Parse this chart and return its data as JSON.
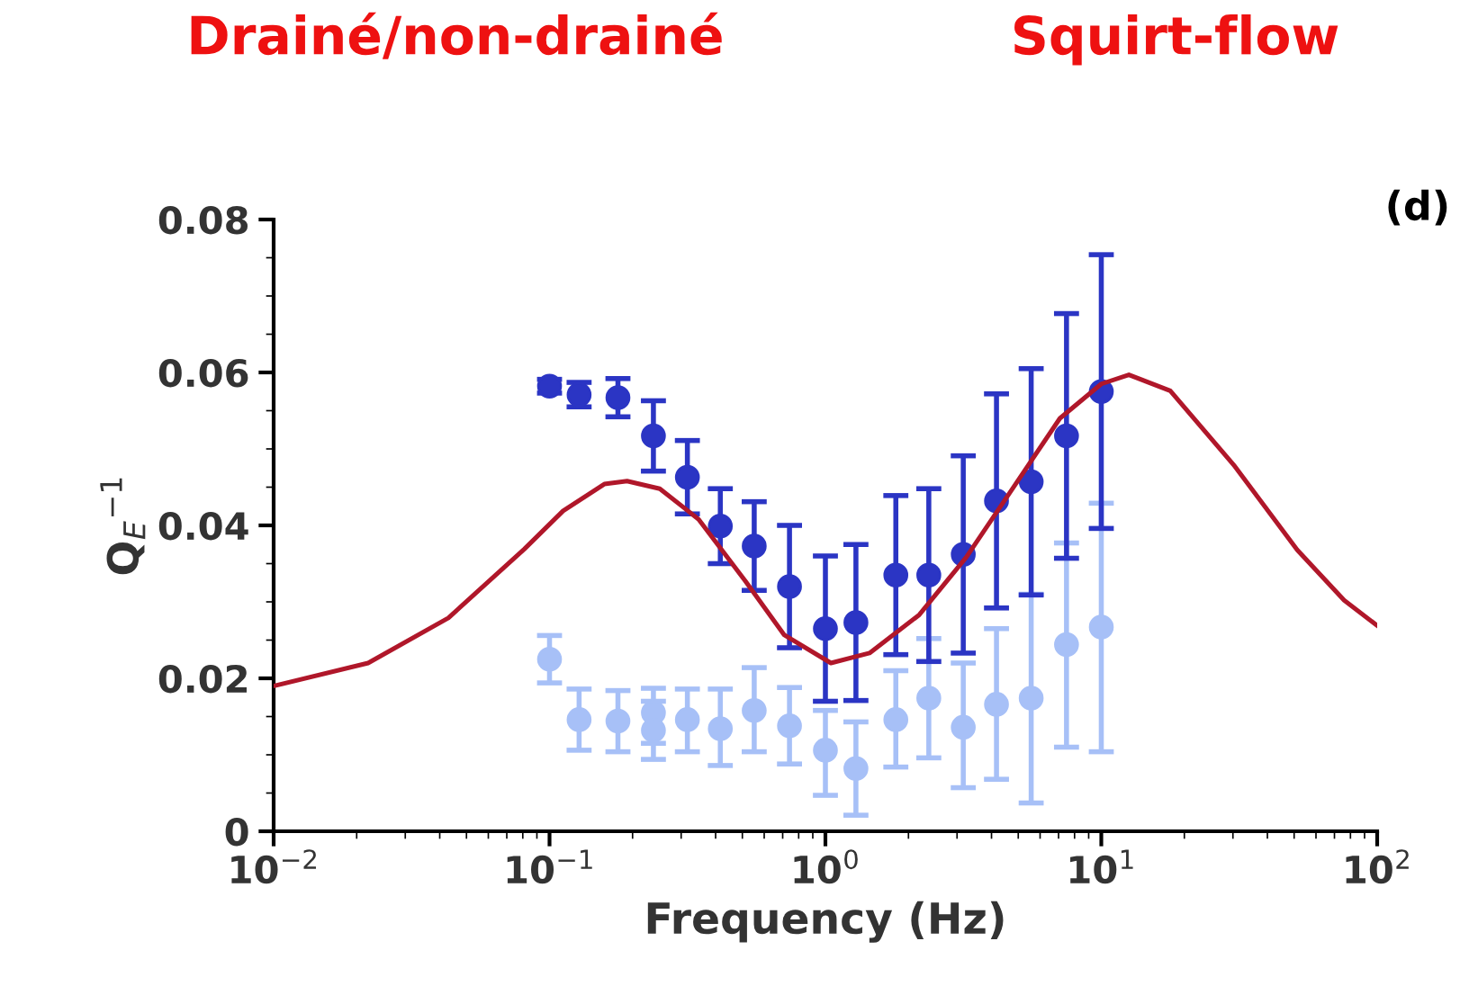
{
  "chart_data": {
    "type": "scatter",
    "xlabel": "Frequency (Hz)",
    "ylabel": "Q$_{E}$$^{−1}$",
    "annotations": [
      "Drainé/non-drainé",
      "Squirt-flow",
      "(d)"
    ],
    "log": "x",
    "xlim": [
      0.01,
      100
    ],
    "xticks": [
      {
        "value": 0.01,
        "label": "10$^{−2}$"
      },
      {
        "value": 0.1,
        "label": "10$^{−1}$"
      },
      {
        "value": 1,
        "label": "10$^{0}$"
      },
      {
        "value": 10,
        "label": "10$^{1}$"
      },
      {
        "value": 100,
        "label": "10$^{2}$"
      }
    ],
    "ylim": [
      0,
      0.08
    ],
    "yticks": [
      0,
      0.02,
      0.04,
      0.06,
      0.08
    ],
    "grid": false,
    "legend": false,
    "marker": "circle",
    "series": [
      {
        "type": "line",
        "color": "#b0172a",
        "marker": "none",
        "line_style": "solid",
        "x": [
          0.01,
          0.022,
          0.043,
          0.081,
          0.112,
          0.158,
          0.191,
          0.251,
          0.347,
          0.513,
          0.708,
          1.047,
          1.445,
          2.188,
          3.236,
          4.786,
          7.079,
          10,
          12.59,
          17.78,
          30.2,
          51.3,
          75.9,
          100
        ],
        "values": [
          0.019,
          0.022,
          0.0279,
          0.0369,
          0.0419,
          0.0454,
          0.0458,
          0.0448,
          0.0408,
          0.0327,
          0.0257,
          0.022,
          0.0233,
          0.0283,
          0.0358,
          0.0449,
          0.054,
          0.0585,
          0.0597,
          0.0576,
          0.0479,
          0.0368,
          0.0302,
          0.0269
        ]
      },
      {
        "color": "#a7c0f7",
        "x": [
          0.1,
          0.128,
          0.177,
          0.238,
          0.238,
          0.316,
          0.416,
          0.552,
          0.741,
          1.0,
          1.29,
          1.8,
          2.37,
          3.16,
          4.17,
          5.57,
          7.48,
          10
        ],
        "values": [
          0.0225,
          0.0146,
          0.0144,
          0.0155,
          0.0132,
          0.0146,
          0.0134,
          0.0158,
          0.0138,
          0.0106,
          0.0082,
          0.0146,
          0.0174,
          0.0136,
          0.0166,
          0.0174,
          0.0244,
          0.0267
        ],
        "errors": [
          [
            0.0194,
            0.0256
          ],
          [
            0.0106,
            0.0186
          ],
          [
            0.0104,
            0.0184
          ],
          [
            0.0115,
            0.0187
          ],
          [
            0.0094,
            0.017
          ],
          [
            0.0104,
            0.0186
          ],
          [
            0.0086,
            0.0186
          ],
          [
            0.0104,
            0.0214
          ],
          [
            0.0088,
            0.0188
          ],
          [
            0.0047,
            0.0158
          ],
          [
            0.0021,
            0.0143
          ],
          [
            0.0084,
            0.021
          ],
          [
            0.0096,
            0.0252
          ],
          [
            0.0057,
            0.022
          ],
          [
            0.0068,
            0.0265
          ],
          [
            0.0037,
            0.031
          ],
          [
            0.011,
            0.0377
          ],
          [
            0.0104,
            0.0429
          ]
        ]
      },
      {
        "color": "#2b35c4",
        "x": [
          0.1,
          0.128,
          0.177,
          0.238,
          0.316,
          0.416,
          0.552,
          0.741,
          1.0,
          1.29,
          1.8,
          2.37,
          3.16,
          4.17,
          5.57,
          7.48,
          10
        ],
        "values": [
          0.0582,
          0.0571,
          0.0567,
          0.0517,
          0.0463,
          0.0399,
          0.0373,
          0.032,
          0.0265,
          0.0273,
          0.0335,
          0.0335,
          0.0362,
          0.0432,
          0.0457,
          0.0517,
          0.0575
        ],
        "errors": [
          0.0009,
          0.0016,
          0.0025,
          0.0046,
          0.0048,
          0.0049,
          0.0058,
          0.008,
          0.0095,
          0.0102,
          0.0104,
          0.0113,
          0.0129,
          0.014,
          0.0148,
          0.016,
          0.0179
        ]
      }
    ]
  }
}
